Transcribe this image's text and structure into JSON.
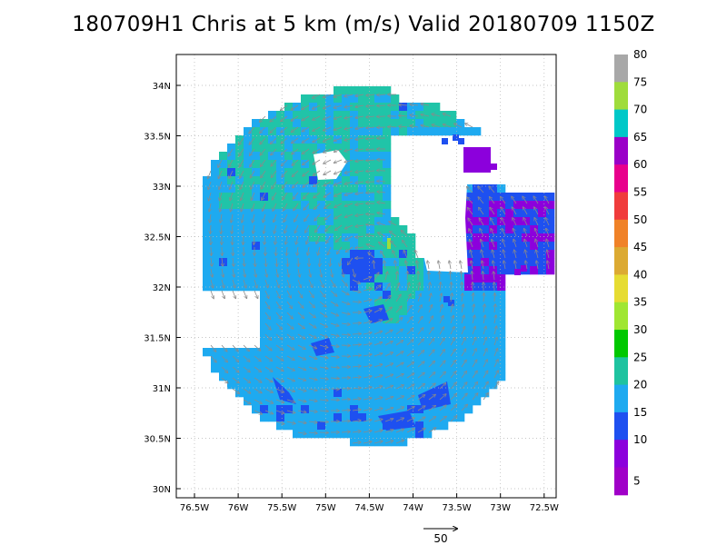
{
  "title": "180709H1 Chris at 5 km (m/s) Valid 20180709 1150Z",
  "x_ticks": [
    "76.5W",
    "76W",
    "75.5W",
    "75W",
    "74.5W",
    "74W",
    "73.5W",
    "73W",
    "72.5W"
  ],
  "y_ticks": [
    "34N",
    "33.5N",
    "33N",
    "32.5N",
    "32N",
    "31.5N",
    "31N",
    "30.5N",
    "30N"
  ],
  "colorbar": {
    "labels": [
      "80",
      "75",
      "70",
      "65",
      "60",
      "55",
      "50",
      "45",
      "40",
      "35",
      "30",
      "25",
      "20",
      "15",
      "10",
      "5"
    ],
    "colors": [
      "#a8a8a8",
      "#9fdc3c",
      "#00c8c8",
      "#9a00c8",
      "#e8008c",
      "#f03c3c",
      "#f08228",
      "#dcaa32",
      "#e6dc32",
      "#a0e632",
      "#00c800",
      "#1ec3a0",
      "#1eaaf0",
      "#1e50f0",
      "#8c00dc",
      "#a000c8"
    ]
  },
  "reference_vector": {
    "label": "50",
    "units": "m/s"
  },
  "chart_data": {
    "type": "map",
    "xlim": [
      "76.8W",
      "72.3W"
    ],
    "ylim": [
      "29.9N",
      "34.4N"
    ],
    "grid": true,
    "storm_center": {
      "lon": "74.5W",
      "lat": "32.2N"
    }
  }
}
